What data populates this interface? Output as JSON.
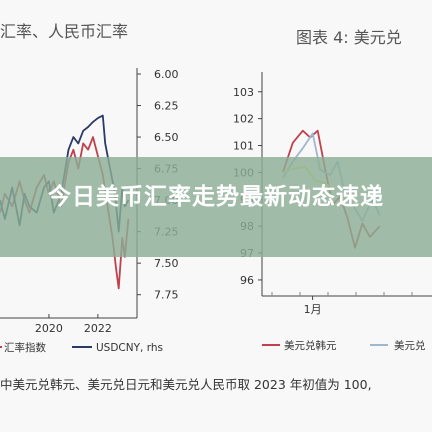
{
  "left_panel_title": "汇率、人民币汇率",
  "right_panel_title": "图表 4:  美元兑",
  "overlay_title": "今日美币汇率走势最新动态速递",
  "footnote": "中美元兑韩元、美元兑日元和美元兑人民币取 2023 年初值为 100,",
  "colors": {
    "overlay": "#8cae96",
    "series_red": "#c0404c",
    "series_navy": "#2b3a66",
    "series_yellow": "#e8e455",
    "series_blue": "#9fb8d0"
  },
  "chart_data": [
    {
      "type": "line",
      "title": "汇率、人民币汇率",
      "x_ticks": [
        "2020",
        "2022"
      ],
      "x_range": [
        2018.0,
        2023.6
      ],
      "y_right_ticks": [
        "6.00",
        "6.25",
        "6.50",
        "6.75",
        "7.00",
        "7.25",
        "7.50",
        "7.75"
      ],
      "y_right_range": [
        6.0,
        7.8
      ],
      "y_right_inverted": true,
      "legend_position": "bottom",
      "series": [
        {
          "name": "汇率指数",
          "color": "#c0404c",
          "points": [
            [
              2018.0,
              7.1
            ],
            [
              2018.2,
              6.95
            ],
            [
              2018.5,
              7.05
            ],
            [
              2018.8,
              6.85
            ],
            [
              2019.0,
              7.0
            ],
            [
              2019.2,
              7.1
            ],
            [
              2019.5,
              6.9
            ],
            [
              2019.8,
              6.8
            ],
            [
              2020.0,
              6.95
            ],
            [
              2020.2,
              6.85
            ],
            [
              2020.5,
              7.05
            ],
            [
              2020.8,
              6.7
            ],
            [
              2021.0,
              6.6
            ],
            [
              2021.2,
              6.75
            ],
            [
              2021.4,
              6.55
            ],
            [
              2021.6,
              6.6
            ],
            [
              2021.8,
              6.5
            ],
            [
              2022.0,
              6.65
            ],
            [
              2022.2,
              6.8
            ],
            [
              2022.4,
              7.05
            ],
            [
              2022.6,
              7.3
            ],
            [
              2022.75,
              7.55
            ],
            [
              2022.85,
              7.7
            ],
            [
              2023.0,
              7.3
            ],
            [
              2023.1,
              7.45
            ],
            [
              2023.25,
              7.15
            ]
          ]
        },
        {
          "name": "USDCNY, rhs",
          "color": "#2b3a66",
          "points": [
            [
              2018.0,
              7.0
            ],
            [
              2018.2,
              7.15
            ],
            [
              2018.5,
              6.9
            ],
            [
              2018.8,
              7.2
            ],
            [
              2019.0,
              6.95
            ],
            [
              2019.2,
              7.05
            ],
            [
              2019.5,
              7.1
            ],
            [
              2019.8,
              6.9
            ],
            [
              2020.0,
              6.85
            ],
            [
              2020.2,
              7.1
            ],
            [
              2020.5,
              6.95
            ],
            [
              2020.8,
              6.6
            ],
            [
              2021.0,
              6.5
            ],
            [
              2021.2,
              6.55
            ],
            [
              2021.4,
              6.45
            ],
            [
              2021.6,
              6.42
            ],
            [
              2021.8,
              6.38
            ],
            [
              2022.0,
              6.35
            ],
            [
              2022.2,
              6.33
            ],
            [
              2022.3,
              6.55
            ],
            [
              2022.5,
              6.75
            ],
            [
              2022.7,
              6.95
            ],
            [
              2022.85,
              7.25
            ],
            [
              2023.0,
              6.9
            ],
            [
              2023.1,
              7.05
            ],
            [
              2023.25,
              7.0
            ]
          ]
        }
      ]
    },
    {
      "type": "line",
      "title": "图表 4:  美元兑",
      "x_ticks": [
        "1月"
      ],
      "x_range": [
        -0.3,
        3.0
      ],
      "y_ticks": [
        "96",
        "97",
        "98",
        "99",
        "100",
        "101",
        "102",
        "103"
      ],
      "y_range": [
        95.7,
        103.4
      ],
      "legend_position": "bottom",
      "series": [
        {
          "name": "美元兑韩元",
          "color": "#c0404c",
          "points": [
            [
              0.0,
              100
            ],
            [
              0.2,
              101.1
            ],
            [
              0.4,
              101.55
            ],
            [
              0.55,
              101.3
            ],
            [
              0.7,
              101.55
            ],
            [
              0.85,
              100.1
            ],
            [
              1.0,
              98.8
            ],
            [
              1.15,
              99.1
            ],
            [
              1.3,
              98.3
            ],
            [
              1.45,
              97.2
            ],
            [
              1.6,
              98.1
            ],
            [
              1.75,
              97.6
            ],
            [
              1.95,
              98.0
            ]
          ]
        },
        {
          "name": "美元兑",
          "color": "#9fb8d0",
          "points": [
            [
              0.0,
              99.8
            ],
            [
              0.2,
              100.4
            ],
            [
              0.4,
              100.9
            ],
            [
              0.6,
              101.45
            ],
            [
              0.75,
              100.1
            ],
            [
              0.95,
              99.9
            ],
            [
              1.1,
              100.4
            ],
            [
              1.25,
              99.2
            ],
            [
              1.4,
              98.8
            ],
            [
              1.6,
              98.2
            ],
            [
              1.8,
              99.0
            ],
            [
              1.95,
              98.4
            ]
          ]
        },
        {
          "name": "",
          "color": "#e8e455",
          "points": [
            [
              0.0,
              100
            ],
            [
              0.25,
              100.15
            ],
            [
              0.45,
              100.2
            ],
            [
              0.65,
              99.7
            ],
            [
              0.85,
              99.6
            ],
            [
              1.0,
              99.4
            ]
          ]
        }
      ]
    }
  ]
}
